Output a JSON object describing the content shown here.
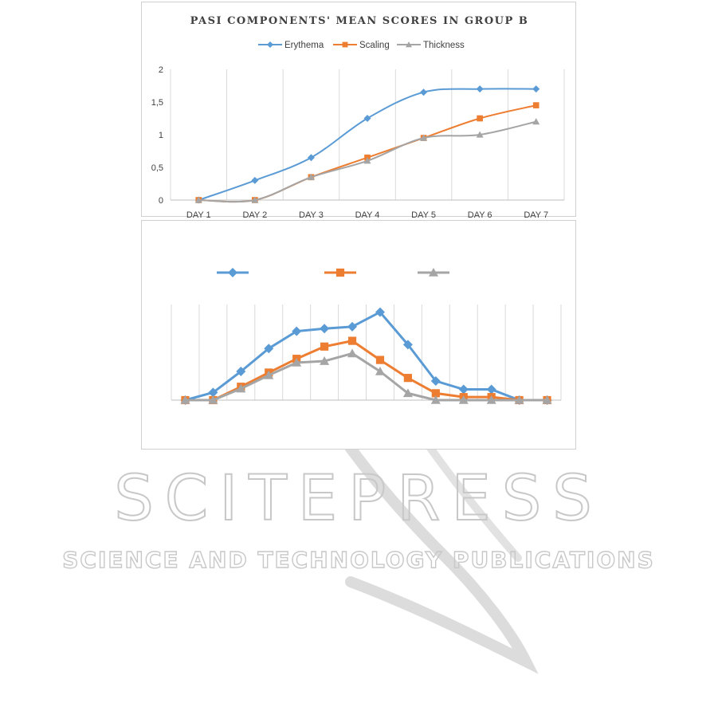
{
  "watermark": {
    "name": "SCITEPRESS",
    "tagline": "SCIENCE AND TECHNOLOGY PUBLICATIONS"
  },
  "chart_data": [
    {
      "type": "line",
      "title": "PASI COMPONENTS' MEAN SCORES IN GROUP B",
      "categories": [
        "DAY 1",
        "DAY 2",
        "DAY 3",
        "DAY 4",
        "DAY 5",
        "DAY 6",
        "DAY 7"
      ],
      "yticks": [
        "0",
        "0,5",
        "1",
        "1,5",
        "2"
      ],
      "ylim": [
        0,
        2
      ],
      "grid": "vertical",
      "legend_position": "top",
      "series": [
        {
          "name": "Erythema",
          "color": "#5B9BD5",
          "marker": "diamond",
          "values": [
            0,
            0.3,
            0.65,
            1.25,
            1.65,
            1.7,
            1.7
          ]
        },
        {
          "name": "Scaling",
          "color": "#ED7D31",
          "marker": "square",
          "values": [
            0,
            0,
            0.35,
            0.65,
            0.95,
            1.25,
            1.45
          ]
        },
        {
          "name": "Thickness",
          "color": "#A5A5A5",
          "marker": "triangle",
          "values": [
            0,
            0,
            0.35,
            0.6,
            0.95,
            1.0,
            1.2
          ]
        }
      ]
    },
    {
      "type": "line",
      "title": "",
      "categories": [
        "",
        "",
        "",
        "",
        "",
        "",
        "",
        "",
        "",
        "",
        "",
        "",
        "",
        ""
      ],
      "ylim": [
        0,
        2.5
      ],
      "grid": "vertical",
      "legend_position": "top",
      "series": [
        {
          "name": "",
          "color": "#5B9BD5",
          "marker": "diamond",
          "values": [
            0,
            0.2,
            0.75,
            1.35,
            1.8,
            1.87,
            1.92,
            2.3,
            1.45,
            0.5,
            0.28,
            0.28,
            0,
            0
          ]
        },
        {
          "name": "",
          "color": "#ED7D31",
          "marker": "square",
          "values": [
            0,
            0,
            0.35,
            0.72,
            1.08,
            1.4,
            1.55,
            1.05,
            0.58,
            0.18,
            0.08,
            0.08,
            0,
            0
          ]
        },
        {
          "name": "",
          "color": "#A5A5A5",
          "marker": "triangle",
          "values": [
            0,
            0,
            0.3,
            0.65,
            0.98,
            1.02,
            1.22,
            0.75,
            0.18,
            0,
            0,
            0,
            0,
            0
          ]
        }
      ]
    }
  ]
}
